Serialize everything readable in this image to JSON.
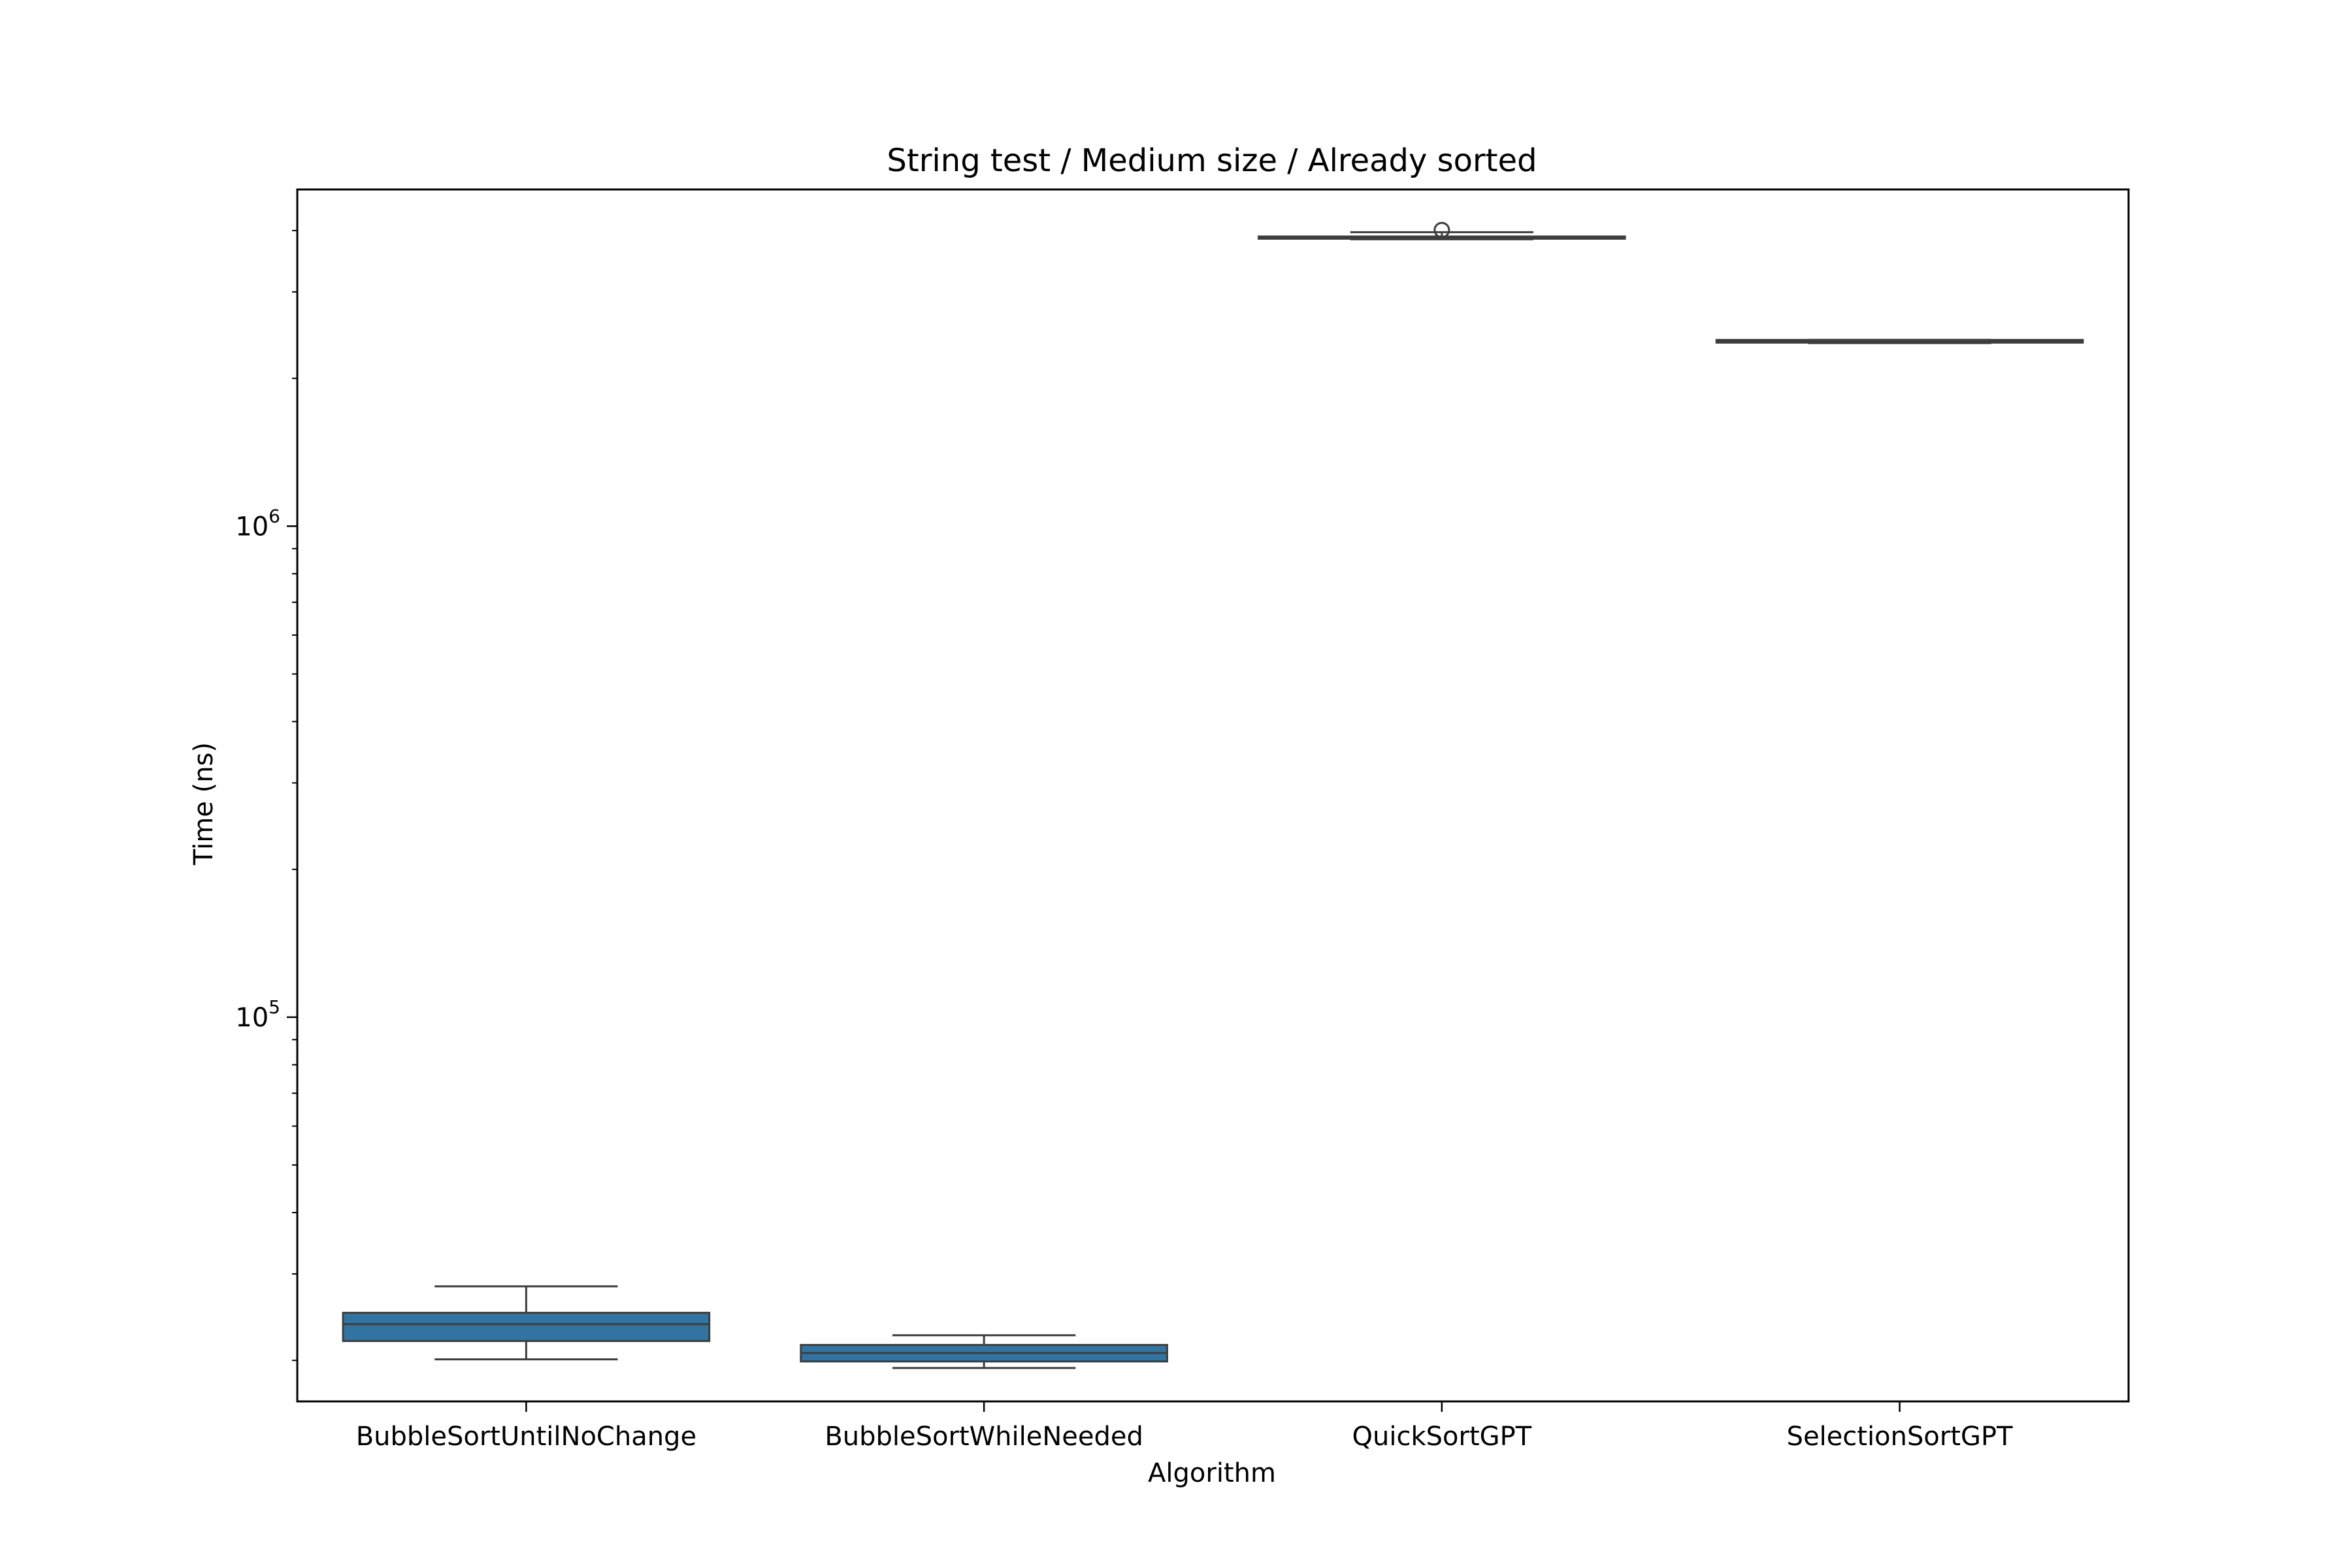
{
  "chart_data": {
    "type": "box",
    "title": "String test / Medium size / Already sorted",
    "xlabel": "Algorithm",
    "ylabel": "Time (ns)",
    "yscale": "log",
    "ylim": [
      16500,
      4850000
    ],
    "y_ticks": [
      {
        "value": 100000,
        "base": "10",
        "exp": "5"
      },
      {
        "value": 1000000,
        "base": "10",
        "exp": "6"
      }
    ],
    "categories": [
      "BubbleSortUntilNoChange",
      "BubbleSortWhileNeeded",
      "QuickSortGPT",
      "SelectionSortGPT"
    ],
    "boxes": [
      {
        "name": "BubbleSortUntilNoChange",
        "whislo": 20100,
        "q1": 21900,
        "median": 23700,
        "q3": 25000,
        "whishi": 28300,
        "fliers": []
      },
      {
        "name": "BubbleSortWhileNeeded",
        "whislo": 19300,
        "q1": 19900,
        "median": 20700,
        "q3": 21500,
        "whishi": 22500,
        "fliers": []
      },
      {
        "name": "QuickSortGPT",
        "whislo": 3840000,
        "q1": 3850000,
        "median": 3870000,
        "q3": 3890000,
        "whishi": 3970000,
        "fliers": [
          4010000
        ]
      },
      {
        "name": "SelectionSortGPT",
        "whislo": 2360000,
        "q1": 2365000,
        "median": 2380000,
        "q3": 2395000,
        "whishi": 2395000,
        "fliers": []
      }
    ],
    "box_color": "#3274a1",
    "line_color": "#3d3d3d",
    "grid": false,
    "legend": "none"
  }
}
